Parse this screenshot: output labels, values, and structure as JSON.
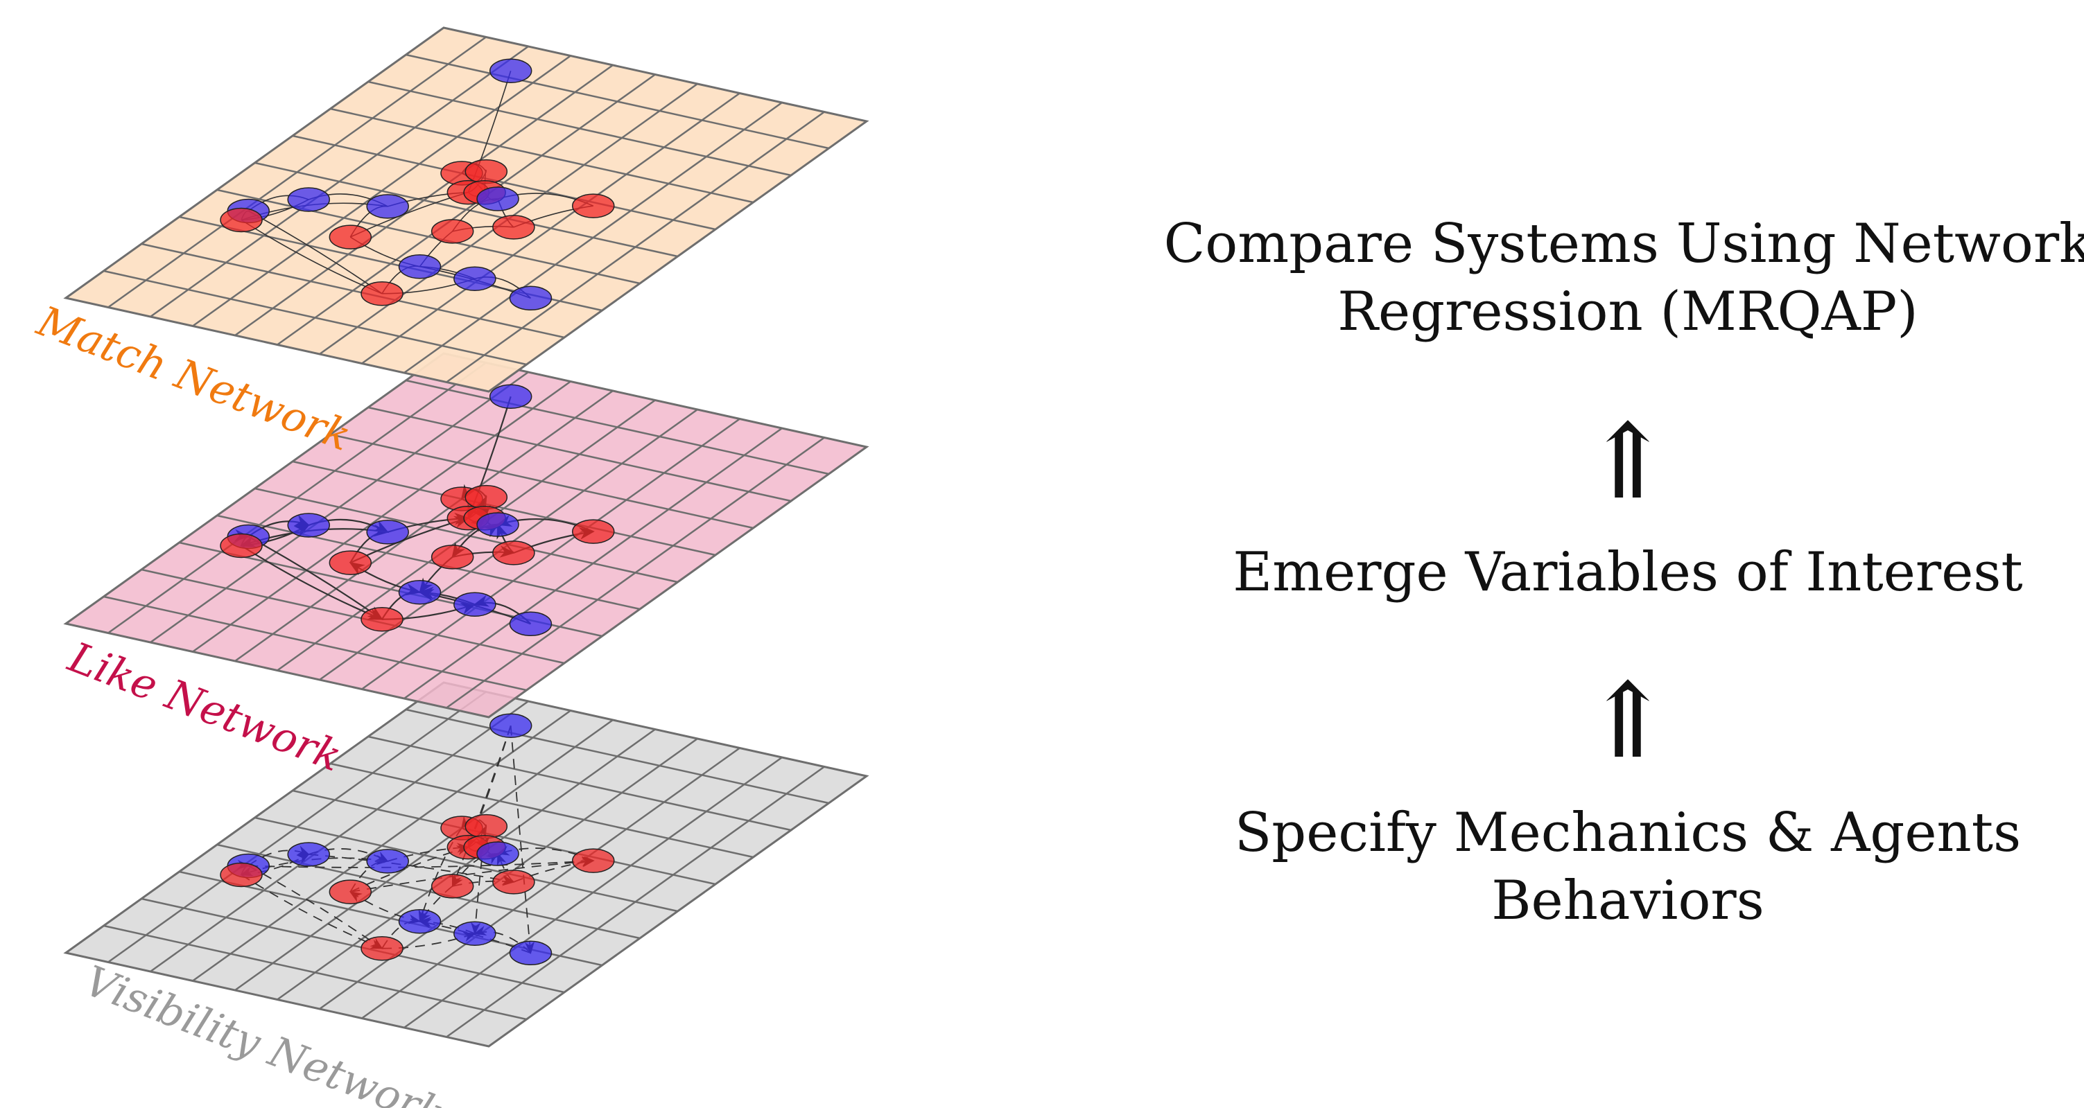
{
  "layers": [
    {
      "key": "match",
      "label": "Match Network",
      "fill": "#fde0c4",
      "label_color": "#f07a10",
      "edge_style": "thin"
    },
    {
      "key": "like",
      "label": "Like Network",
      "fill": "#f2b8cd",
      "label_color": "#c4104a",
      "edge_style": "arrows"
    },
    {
      "key": "visibility",
      "label": "Visibility Network",
      "fill": "#dcdcdc",
      "label_color": "#9a9a9a",
      "edge_style": "dashed"
    }
  ],
  "flow": {
    "top_line1": "Compare Systems Using Network",
    "top_line2": "Regression (MRQAP)",
    "arrow_upper": "⇑",
    "middle": "Emerge Variables of Interest",
    "arrow_lower": "⇑",
    "bottom_line1": "Specify Mechanics & Agents",
    "bottom_line2": "Behaviors"
  },
  "node_colors": {
    "blue": "#3a2cf0",
    "red": "#f02828"
  },
  "grid_color": "#6e6e6e"
}
